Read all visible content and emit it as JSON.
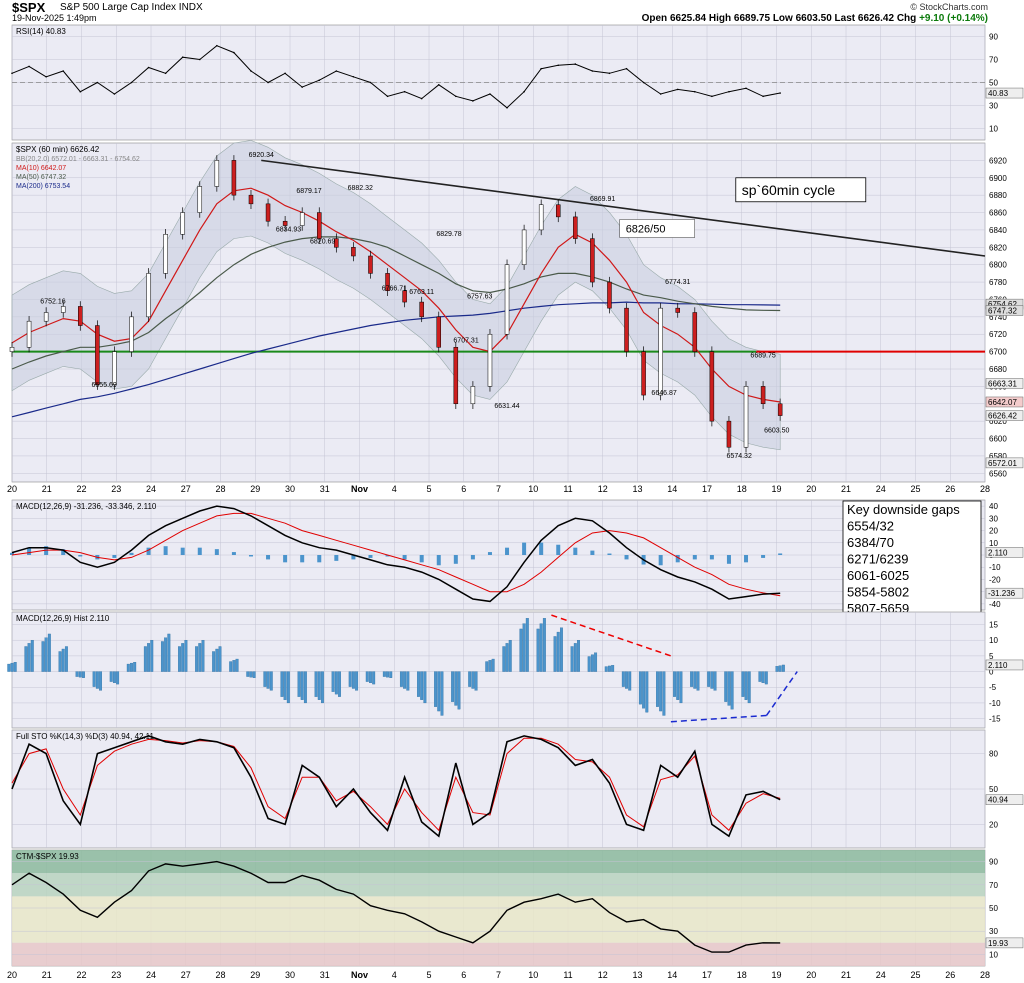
{
  "header": {
    "symbol": "$SPX",
    "name": "S&P 500 Large Cap Index  INDX",
    "date": "19-Nov-2025 1:49pm",
    "brand": "© StockCharts.com",
    "quote": {
      "open_label": "Open",
      "open": "6625.84",
      "high_label": "High",
      "high": "6689.75",
      "low_label": "Low",
      "low": "6603.50",
      "last_label": "Last",
      "last": "6626.42",
      "chg_label": "Chg",
      "chg": "+9.10 (+0.14%)"
    }
  },
  "colors": {
    "panel_bg": "#ebebf4",
    "grid": "#c4c4d4",
    "price_line": "#000000",
    "ma10": "#d01818",
    "ma50": "#4a5a4a",
    "ma200": "#1a2a8a",
    "support": "#1a8a1a",
    "resistance": "#e00000",
    "hist": "#4b94cc",
    "macd": "#000000",
    "signal": "#e00000",
    "up": "#ffffff",
    "down": "#cc1f1f"
  },
  "x_axis": {
    "labels": [
      "20",
      "21",
      "22",
      "23",
      "24",
      "27",
      "28",
      "29",
      "30",
      "31",
      "Nov",
      "4",
      "5",
      "6",
      "7",
      "10",
      "11",
      "12",
      "13",
      "14",
      "17",
      "18",
      "19",
      "20",
      "21",
      "24",
      "25",
      "26",
      "28"
    ]
  },
  "chart_data": [
    {
      "type": "line",
      "panel": "rsi",
      "label": "RSI(14) 40.83",
      "ylim": [
        0,
        100
      ],
      "y_ticks": [
        "90",
        "70",
        "50",
        "30",
        "10"
      ],
      "overbought": 70,
      "oversold": 30,
      "x": [
        0,
        0.5,
        1,
        1.5,
        2,
        2.5,
        3,
        3.5,
        4,
        4.5,
        5,
        5.5,
        6,
        6.5,
        7,
        7.5,
        8,
        8.5,
        9,
        9.5,
        10,
        10.5,
        11,
        11.5,
        12,
        12.5,
        13,
        13.5,
        14,
        14.5,
        15,
        15.5,
        16,
        16.5,
        17,
        17.5,
        18,
        18.5,
        19,
        19.5,
        20,
        20.5,
        21,
        21.5,
        22,
        22.5
      ],
      "values": [
        58,
        64,
        55,
        60,
        42,
        50,
        40,
        50,
        63,
        58,
        72,
        70,
        82,
        76,
        60,
        50,
        58,
        46,
        52,
        60,
        55,
        50,
        38,
        42,
        36,
        48,
        38,
        34,
        40,
        28,
        42,
        62,
        65,
        66,
        60,
        58,
        62,
        50,
        40,
        44,
        42,
        38,
        42,
        45,
        38,
        40.83
      ],
      "last_value": "40.83"
    },
    {
      "type": "line",
      "panel": "price",
      "label": "$SPX (60 min) 6626.42",
      "legend": [
        "$SPX (60 min) 6626.42",
        "BB(20,2.0) 6572.01 - 6663.31 - 6754.62",
        "MA(10) 6642.07",
        "MA(50) 6747.32",
        "MA(200) 6753.54"
      ],
      "ylim": [
        6550,
        6940
      ],
      "y_ticks": [
        "6920",
        "6900",
        "6880",
        "6860",
        "6840",
        "6820",
        "6800",
        "6780",
        "6760",
        "6740",
        "6720",
        "6700",
        "6680",
        "6660",
        "6640",
        "6620",
        "6600",
        "6580",
        "6560"
      ],
      "x": [
        0,
        0.5,
        1,
        1.5,
        2,
        2.5,
        3,
        3.5,
        4,
        4.5,
        5,
        5.5,
        6,
        6.5,
        7,
        7.5,
        8,
        8.5,
        9,
        9.5,
        10,
        10.5,
        11,
        11.5,
        12,
        12.5,
        13,
        13.5,
        14,
        14.5,
        15,
        15.5,
        16,
        16.5,
        17,
        17.5,
        18,
        18.5,
        19,
        19.5,
        20,
        20.5,
        21,
        21.5,
        22,
        22.5
      ],
      "close": [
        6705,
        6735,
        6745,
        6752,
        6730,
        6662,
        6700,
        6740,
        6790,
        6835,
        6860,
        6890,
        6920,
        6880,
        6870,
        6850,
        6845,
        6860,
        6830,
        6820,
        6810,
        6790,
        6770,
        6757,
        6740,
        6705,
        6640,
        6660,
        6720,
        6800,
        6840,
        6869,
        6855,
        6830,
        6780,
        6750,
        6700,
        6650,
        6750,
        6745,
        6700,
        6620,
        6590,
        6660,
        6640,
        6626.42
      ],
      "ma10": [
        6710,
        6722,
        6730,
        6738,
        6735,
        6720,
        6712,
        6715,
        6735,
        6770,
        6805,
        6840,
        6870,
        6885,
        6888,
        6880,
        6868,
        6860,
        6850,
        6838,
        6828,
        6815,
        6800,
        6785,
        6770,
        6750,
        6725,
        6705,
        6700,
        6720,
        6755,
        6790,
        6820,
        6835,
        6825,
        6805,
        6780,
        6745,
        6730,
        6720,
        6705,
        6680,
        6660,
        6650,
        6645,
        6642.07
      ],
      "ma50": [
        6680,
        6688,
        6695,
        6700,
        6705,
        6705,
        6708,
        6712,
        6722,
        6738,
        6752,
        6768,
        6785,
        6800,
        6812,
        6820,
        6826,
        6830,
        6832,
        6832,
        6830,
        6826,
        6820,
        6810,
        6800,
        6790,
        6778,
        6770,
        6768,
        6772,
        6778,
        6786,
        6790,
        6790,
        6786,
        6780,
        6772,
        6765,
        6762,
        6758,
        6755,
        6752,
        6750,
        6748,
        6747.5,
        6747.32
      ],
      "ma200": [
        6625,
        6630,
        6635,
        6640,
        6645,
        6648,
        6652,
        6657,
        6662,
        6668,
        6674,
        6680,
        6686,
        6692,
        6698,
        6703,
        6708,
        6713,
        6718,
        6722,
        6726,
        6730,
        6733,
        6736,
        6738,
        6740,
        6741,
        6742,
        6744,
        6747,
        6750,
        6752,
        6754,
        6755,
        6756,
        6756,
        6757,
        6756,
        6756,
        6755,
        6755,
        6754.5,
        6754,
        6754,
        6753.8,
        6753.54
      ],
      "price_labels": [
        {
          "x": 1.2,
          "value": 6752.16,
          "text": "6752.16"
        },
        {
          "x": 2.7,
          "value": 6655.69,
          "text": "6655.69"
        },
        {
          "x": 7.3,
          "value": 6920.34,
          "text": "6920.34"
        },
        {
          "x": 8.7,
          "value": 6879.17,
          "text": "6879.17"
        },
        {
          "x": 10.2,
          "value": 6882.32,
          "text": "6882.32"
        },
        {
          "x": 8.1,
          "value": 6834.93,
          "text": "6834.93"
        },
        {
          "x": 9.1,
          "value": 6820.69,
          "text": "6820.69"
        },
        {
          "x": 12.8,
          "value": 6829.78,
          "text": "6829.78"
        },
        {
          "x": 11.2,
          "value": 6766.71,
          "text": "6766.71"
        },
        {
          "x": 12.0,
          "value": 6763.11,
          "text": "6763.11"
        },
        {
          "x": 13.7,
          "value": 6757.63,
          "text": "6757.63"
        },
        {
          "x": 13.3,
          "value": 6707.31,
          "text": "6707.31"
        },
        {
          "x": 14.5,
          "value": 6631.44,
          "text": "6631.44"
        },
        {
          "x": 17.3,
          "value": 6869.91,
          "text": "6869.91"
        },
        {
          "x": 19.5,
          "value": 6774.31,
          "text": "6774.31"
        },
        {
          "x": 19.1,
          "value": 6646.87,
          "text": "6646.87"
        },
        {
          "x": 21.3,
          "value": 6574.32,
          "text": "6574.32"
        },
        {
          "x": 22.4,
          "value": 6603.5,
          "text": "6603.50"
        },
        {
          "x": 22.0,
          "value": 6689.75,
          "text": "6689.75"
        }
      ],
      "right_labels": [
        "6754.62",
        "6747.32",
        "6663.31",
        "6642.07",
        "6626.42",
        "6572.01"
      ],
      "support_level": 6700,
      "trendline": {
        "from": [
          7.3,
          6920
        ],
        "to": [
          28.5,
          6810
        ]
      },
      "annotation_box": "sp`60min cycle",
      "gap_box": "6826/50"
    },
    {
      "type": "line",
      "panel": "macd",
      "label": "MACD(12,26,9) -31.236, -33.346, 2.110",
      "ylim": [
        -45,
        45
      ],
      "y_ticks": [
        "40",
        "30",
        "20",
        "10",
        "0",
        "-10",
        "-20",
        "-30",
        "-40"
      ],
      "x": [
        0,
        0.5,
        1,
        1.5,
        2,
        2.5,
        3,
        3.5,
        4,
        4.5,
        5,
        5.5,
        6,
        6.5,
        7,
        7.5,
        8,
        8.5,
        9,
        9.5,
        10,
        10.5,
        11,
        11.5,
        12,
        12.5,
        13,
        13.5,
        14,
        14.5,
        15,
        15.5,
        16,
        16.5,
        17,
        17.5,
        18,
        18.5,
        19,
        19.5,
        20,
        20.5,
        21,
        21.5,
        22,
        22.5
      ],
      "macd": [
        2,
        6,
        6,
        4,
        -6,
        -10,
        -6,
        4,
        16,
        24,
        30,
        36,
        40,
        38,
        32,
        24,
        16,
        10,
        6,
        4,
        0,
        -4,
        -8,
        -10,
        -14,
        -20,
        -28,
        -36,
        -38,
        -26,
        -6,
        12,
        24,
        30,
        28,
        18,
        6,
        -4,
        -12,
        -18,
        -22,
        -28,
        -36,
        -34,
        -32,
        -31.236
      ],
      "signal": [
        0,
        2,
        4,
        4,
        2,
        -2,
        -4,
        -2,
        4,
        12,
        20,
        26,
        32,
        34,
        34,
        30,
        26,
        20,
        16,
        12,
        8,
        4,
        0,
        -4,
        -8,
        -12,
        -18,
        -24,
        -30,
        -30,
        -24,
        -14,
        -2,
        10,
        18,
        20,
        18,
        14,
        6,
        -2,
        -10,
        -16,
        -24,
        -28,
        -31,
        -33.346
      ],
      "hist_last": "2.110",
      "right_labels": [
        "2.110",
        "-31.236",
        "-33.346"
      ],
      "legend_box": [
        "Key downside gaps",
        "6554/32",
        "6384/70",
        "6271/6239",
        "6061-6025",
        "5854-5802",
        "5807-5659"
      ]
    },
    {
      "type": "bar",
      "panel": "macd-hist",
      "label": "MACD(12,26,9) Hist 2.110",
      "ylim": [
        -18,
        19
      ],
      "y_ticks": [
        "15",
        "10",
        "5",
        "0",
        "-5",
        "-10",
        "-15"
      ],
      "x": [
        0,
        0.5,
        1,
        1.5,
        2,
        2.5,
        3,
        3.5,
        4,
        4.5,
        5,
        5.5,
        6,
        6.5,
        7,
        7.5,
        8,
        8.5,
        9,
        9.5,
        10,
        10.5,
        11,
        11.5,
        12,
        12.5,
        13,
        13.5,
        14,
        14.5,
        15,
        15.5,
        16,
        16.5,
        17,
        17.5,
        18,
        18.5,
        19,
        19.5,
        20,
        20.5,
        21,
        21.5,
        22,
        22.5
      ],
      "values": [
        3,
        10,
        12,
        8,
        -2,
        -6,
        -4,
        3,
        10,
        12,
        10,
        10,
        8,
        4,
        -2,
        -6,
        -10,
        -10,
        -10,
        -8,
        -6,
        -4,
        -2,
        -6,
        -10,
        -14,
        -12,
        -6,
        4,
        10,
        17,
        17,
        14,
        10,
        6,
        2,
        -6,
        -13,
        -14,
        -10,
        -6,
        -6,
        -12,
        -10,
        -4,
        2.11
      ],
      "right_label": "2.110"
    },
    {
      "type": "line",
      "panel": "sto",
      "label": "Full STO %K(14,3) %D(3) 40.94, 42.11",
      "ylim": [
        0,
        100
      ],
      "y_ticks": [
        "80",
        "50",
        "20"
      ],
      "x": [
        0,
        0.5,
        1,
        1.5,
        2,
        2.5,
        3,
        3.5,
        4,
        4.5,
        5,
        5.5,
        6,
        6.5,
        7,
        7.5,
        8,
        8.5,
        9,
        9.5,
        10,
        10.5,
        11,
        11.5,
        12,
        12.5,
        13,
        13.5,
        14,
        14.5,
        15,
        15.5,
        16,
        16.5,
        17,
        17.5,
        18,
        18.5,
        19,
        19.5,
        20,
        20.5,
        21,
        21.5,
        22,
        22.5
      ],
      "k": [
        50,
        88,
        80,
        40,
        20,
        80,
        85,
        90,
        95,
        90,
        88,
        92,
        90,
        85,
        60,
        25,
        20,
        70,
        60,
        35,
        50,
        30,
        15,
        60,
        22,
        10,
        72,
        20,
        30,
        90,
        95,
        92,
        85,
        70,
        75,
        55,
        20,
        15,
        70,
        60,
        82,
        20,
        10,
        45,
        48,
        40.94
      ],
      "d": [
        55,
        80,
        84,
        50,
        28,
        70,
        82,
        88,
        92,
        91,
        89,
        91,
        90,
        86,
        68,
        35,
        25,
        60,
        60,
        40,
        48,
        35,
        20,
        50,
        30,
        15,
        60,
        30,
        28,
        80,
        93,
        93,
        88,
        75,
        73,
        60,
        28,
        18,
        58,
        62,
        78,
        28,
        15,
        38,
        46,
        42.11
      ],
      "right_label": "40.94"
    },
    {
      "type": "line",
      "panel": "ctm",
      "label": "CTM-$SPX 19.93",
      "ylim": [
        0,
        100
      ],
      "y_ticks": [
        "90",
        "70",
        "50",
        "30",
        "10"
      ],
      "x": [
        0,
        0.5,
        1,
        1.5,
        2,
        2.5,
        3,
        3.5,
        4,
        4.5,
        5,
        5.5,
        6,
        6.5,
        7,
        7.5,
        8,
        8.5,
        9,
        9.5,
        10,
        10.5,
        11,
        11.5,
        12,
        12.5,
        13,
        13.5,
        14,
        14.5,
        15,
        15.5,
        16,
        16.5,
        17,
        17.5,
        18,
        18.5,
        19,
        19.5,
        20,
        20.5,
        21,
        21.5,
        22,
        22.5
      ],
      "values": [
        70,
        80,
        72,
        62,
        48,
        42,
        55,
        65,
        82,
        88,
        86,
        88,
        90,
        86,
        80,
        72,
        72,
        78,
        74,
        66,
        62,
        52,
        48,
        45,
        38,
        30,
        25,
        20,
        30,
        48,
        55,
        58,
        62,
        55,
        58,
        46,
        38,
        40,
        32,
        30,
        18,
        12,
        12,
        18,
        20,
        19.93
      ],
      "right_label": "19.93"
    }
  ]
}
